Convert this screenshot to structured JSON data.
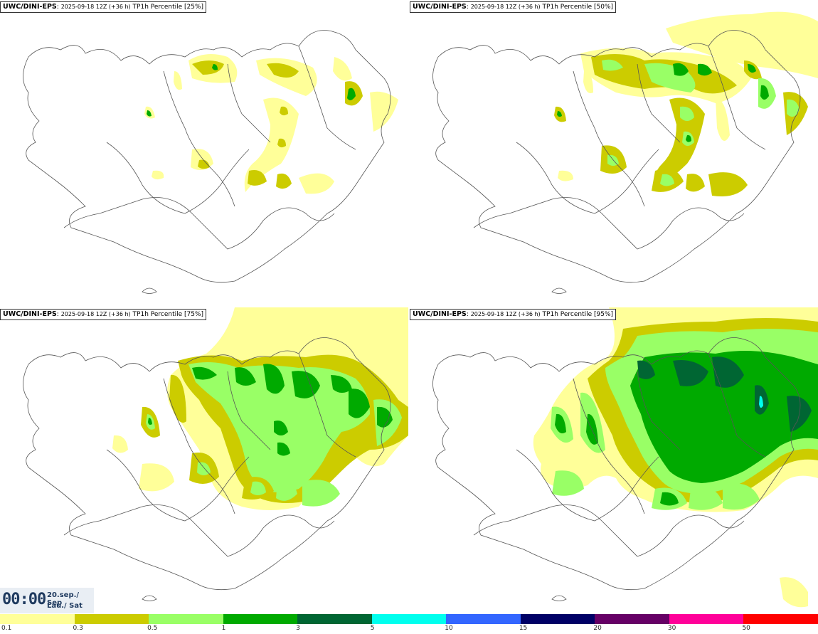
{
  "panels": [
    {
      "source": "UWC/DINI-EPS",
      "run": "2025-09-18 12Z (+36 h)",
      "variable": "TP1h Percentile [25%]"
    },
    {
      "source": "UWC/DINI-EPS",
      "run": "2025-09-18 12Z (+36 h)",
      "variable": "TP1h Percentile [50%]"
    },
    {
      "source": "UWC/DINI-EPS",
      "run": "2025-09-18 12Z (+36 h)",
      "variable": "TP1h Percentile [75%]"
    },
    {
      "source": "UWC/DINI-EPS",
      "run": "2025-09-18 12Z (+36 h)",
      "variable": "TP1h Percentile [95%]"
    }
  ],
  "valid_time": {
    "time": "00:00",
    "date": "20.sep./ Sep",
    "day": "Lau./ Sat"
  },
  "legend": {
    "labels": [
      "0.1",
      "0.3",
      "0.5",
      "1",
      "3",
      "5",
      "10",
      "15",
      "20",
      "30",
      "50"
    ],
    "colors": [
      "#ffff99",
      "#cccc00",
      "#99ff66",
      "#00aa00",
      "#006633",
      "#00ffee",
      "#3366ff",
      "#000066",
      "#660066",
      "#ff0099",
      "#ff0000"
    ]
  },
  "map_colors": {
    "coast": "#555555",
    "land": "#ffffff"
  }
}
